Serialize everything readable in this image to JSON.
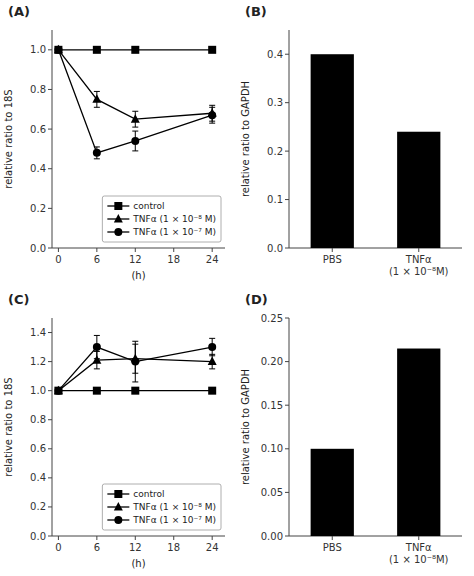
{
  "chart_data": [
    {
      "type": "line",
      "title": "(A)",
      "xlabel": "(h)",
      "ylabel": "relative ratio to 18S",
      "x": [
        0,
        6,
        12,
        24
      ],
      "series": [
        {
          "name": "control",
          "color": "black",
          "marker": "square",
          "values": [
            1.0,
            1.0,
            1.0,
            1.0
          ]
        },
        {
          "name": "TNFα (1 × 10⁻⁸ M)",
          "color": "black",
          "marker": "triangle",
          "values": [
            1.0,
            0.75,
            0.65,
            0.68
          ],
          "errors": [
            0.0,
            0.04,
            0.04,
            0.04
          ]
        },
        {
          "name": "TNFα (1 × 10⁻⁷ M)",
          "color": "black",
          "marker": "circle",
          "values": [
            1.0,
            0.48,
            0.54,
            0.67
          ],
          "errors": [
            0.0,
            0.03,
            0.05,
            0.04
          ]
        }
      ],
      "xlim": [
        -1,
        26
      ],
      "xticks": [
        0,
        6,
        12,
        18,
        24
      ],
      "ylim": [
        0,
        1.1
      ],
      "yticks": [
        {
          "value": 0,
          "label": "0.0"
        },
        0.2,
        0.4,
        0.6,
        0.8,
        {
          "value": 1.0,
          "label": "1.0"
        }
      ],
      "legend": "lower right"
    },
    {
      "type": "bar",
      "title": "(B)",
      "ylabel": "relative ratio to GAPDH",
      "categories": [
        "PBS",
        "TNFα\n(1 × 10⁻⁸M)"
      ],
      "values": [
        0.4,
        0.24
      ],
      "color": "black",
      "ylim": [
        0,
        0.45
      ],
      "yticks": [
        {
          "value": 0,
          "label": "0.0"
        },
        0.1,
        0.2,
        0.3,
        0.4
      ]
    },
    {
      "type": "line",
      "title": "(C)",
      "xlabel": "(h)",
      "ylabel": "relative ratio to 18S",
      "x": [
        0,
        6,
        12,
        24
      ],
      "series": [
        {
          "name": "control",
          "color": "black",
          "marker": "square",
          "values": [
            1.0,
            1.0,
            1.0,
            1.0
          ]
        },
        {
          "name": "TNFα (1 × 10⁻⁸ M)",
          "color": "black",
          "marker": "triangle",
          "values": [
            1.0,
            1.21,
            1.22,
            1.2
          ],
          "errors": [
            0.0,
            0.06,
            0.1,
            0.05
          ]
        },
        {
          "name": "TNFα (1 × 10⁻⁷ M)",
          "color": "black",
          "marker": "circle",
          "values": [
            1.0,
            1.3,
            1.2,
            1.3
          ],
          "errors": [
            0.0,
            0.08,
            0.14,
            0.06
          ]
        }
      ],
      "xlim": [
        -1,
        26
      ],
      "xticks": [
        0,
        6,
        12,
        18,
        24
      ],
      "ylim": [
        0,
        1.5
      ],
      "yticks": [
        {
          "value": 0,
          "label": "0.0"
        },
        0.2,
        0.4,
        0.6,
        0.8,
        {
          "value": 1.0,
          "label": "1.0"
        },
        1.2,
        1.4
      ],
      "legend": "lower right"
    },
    {
      "type": "bar",
      "title": "(D)",
      "ylabel": "relative ratio to GAPDH",
      "categories": [
        "PBS",
        "TNFα\n(1 × 10⁻⁸M)"
      ],
      "values": [
        0.1,
        0.215
      ],
      "color": "black",
      "ylim": [
        0,
        0.25
      ],
      "yticks": [
        {
          "value": 0,
          "label": "0.00"
        },
        0.05,
        {
          "value": 0.1,
          "label": "0.10"
        },
        0.15,
        {
          "value": 0.2,
          "label": "0.20"
        },
        0.25
      ]
    }
  ]
}
